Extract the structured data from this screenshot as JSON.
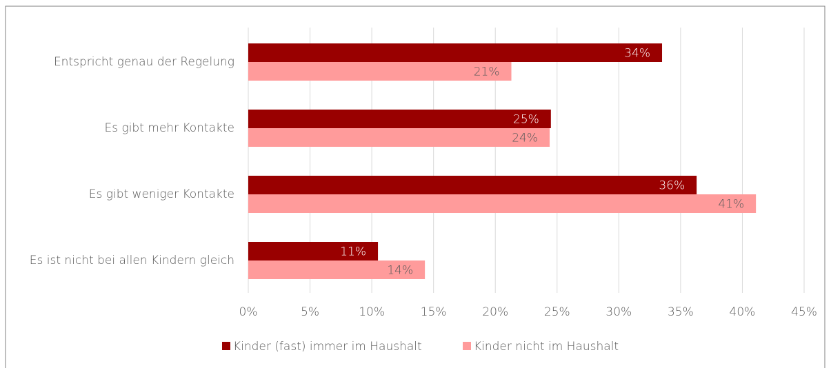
{
  "chart_data": {
    "type": "hbar",
    "categories": [
      "Entspricht genau der Regelung",
      "Es gibt mehr Kontakte",
      "Es gibt weniger Kontakte",
      "Es ist nicht bei allen Kindern gleich"
    ],
    "series": [
      {
        "name": "Kinder (fast) immer im Haushalt",
        "color": "#990000",
        "label_color": "#ffffff",
        "values": [
          33.5,
          24.5,
          36.3,
          10.5
        ],
        "value_labels": [
          "34%",
          "25%",
          "36%",
          "11%"
        ]
      },
      {
        "name": "Kinder nicht im Haushalt",
        "color": "#ff9b9b",
        "label_color": "#595959",
        "values": [
          21.3,
          24.4,
          41.1,
          14.3
        ],
        "value_labels": [
          "21%",
          "24%",
          "41%",
          "14%"
        ]
      }
    ],
    "xlim": [
      0,
      45
    ],
    "xticks": [
      {
        "value": 0,
        "label": "0%"
      },
      {
        "value": 5,
        "label": "5%"
      },
      {
        "value": 10,
        "label": "10%"
      },
      {
        "value": 15,
        "label": "15%"
      },
      {
        "value": 20,
        "label": "20%"
      },
      {
        "value": 25,
        "label": "25%"
      },
      {
        "value": 30,
        "label": "30%"
      },
      {
        "value": 35,
        "label": "35%"
      },
      {
        "value": 40,
        "label": "40%"
      },
      {
        "value": 45,
        "label": "45%"
      }
    ],
    "grid": true,
    "legend": "bottom"
  }
}
